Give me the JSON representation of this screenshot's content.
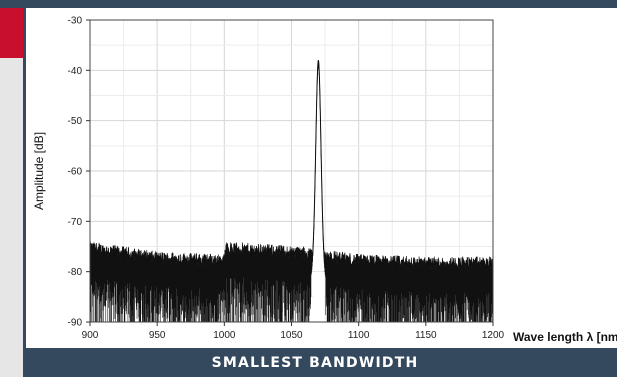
{
  "caption": "SMALLEST BANDWIDTH",
  "colors": {
    "header": "#34495e",
    "accent": "#c8102e",
    "side": "#e6e6e6",
    "trace": "#111111"
  },
  "chart_data": {
    "type": "line",
    "xlabel": "Wave length λ [nm",
    "ylabel": "Amplitude [dB]",
    "xlim": [
      900,
      1200
    ],
    "ylim": [
      -90,
      -30
    ],
    "xticks": [
      "900",
      "950",
      "1000",
      "1050",
      "1100",
      "1150",
      "1200"
    ],
    "yticks": [
      "-30",
      "-40",
      "-50",
      "-60",
      "-70",
      "-80",
      "-90"
    ],
    "grid": true,
    "series": [
      {
        "noise_floor": [
          [
            900,
            -79
          ],
          [
            950,
            -81
          ],
          [
            1000,
            -81.5
          ],
          [
            1001,
            -79
          ],
          [
            1060,
            -80
          ],
          [
            1100,
            -81.5
          ],
          [
            1150,
            -82
          ],
          [
            1200,
            -82
          ]
        ],
        "peak": {
          "x": 1070,
          "y": -38,
          "width_nm": 5
        }
      }
    ]
  }
}
